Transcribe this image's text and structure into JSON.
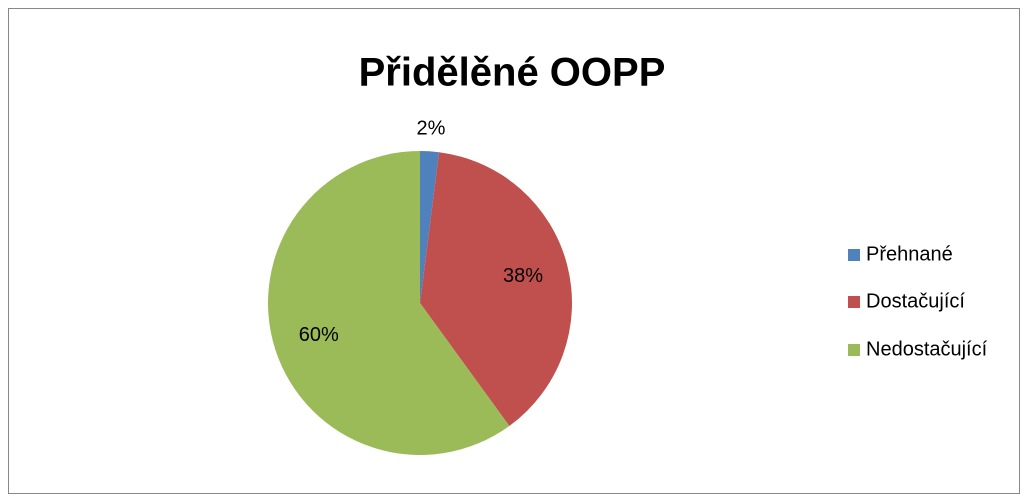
{
  "chart_data": {
    "type": "pie",
    "title": "Přidělěné OOPP",
    "categories": [
      "Přehnané",
      "Dostačující",
      "Nedostačující"
    ],
    "values": [
      2,
      38,
      60
    ],
    "value_labels": [
      "2%",
      "38%",
      "60%"
    ],
    "colors": [
      "#4f81bd",
      "#c0504d",
      "#9bbb59"
    ],
    "legend": "right"
  }
}
